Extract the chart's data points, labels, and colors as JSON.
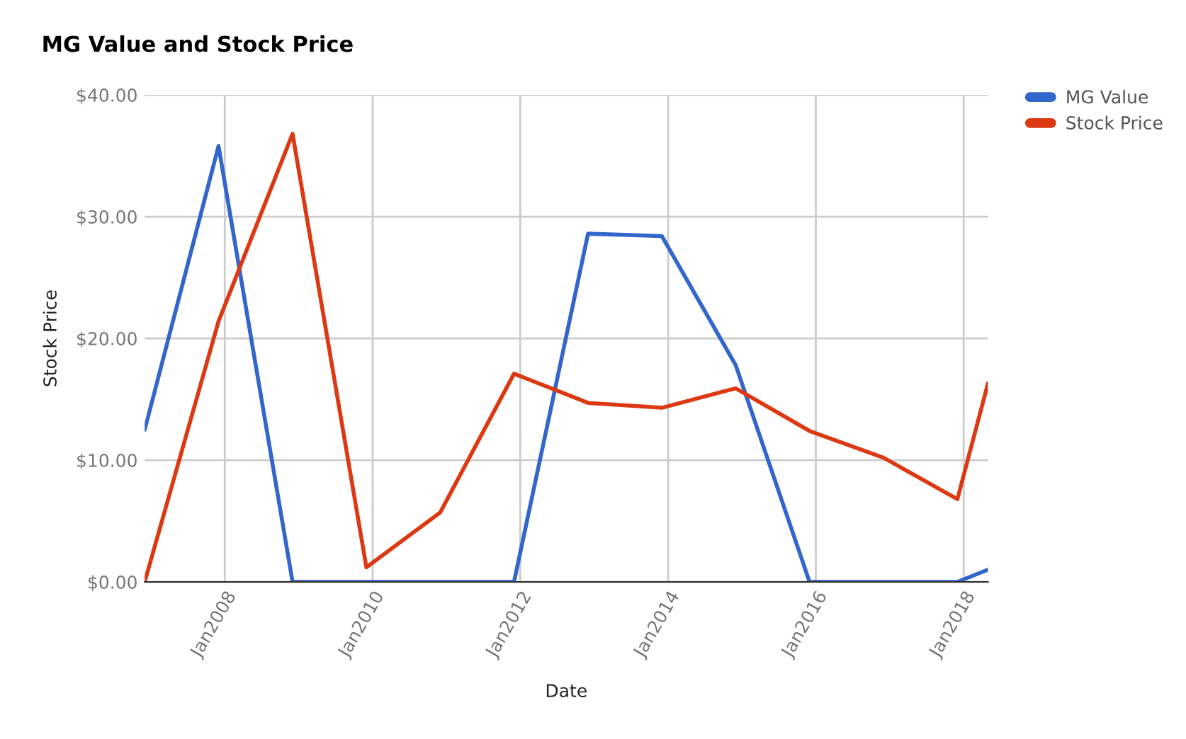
{
  "chart_data": {
    "type": "line",
    "title": "MG Value and Stock Price",
    "xlabel": "Date",
    "ylabel": "Stock Price",
    "x": [
      "2006-12",
      "2007-12",
      "2008-12",
      "2009-12",
      "2010-12",
      "2011-12",
      "2012-12",
      "2013-12",
      "2014-12",
      "2015-12",
      "2016-12",
      "2017-12",
      "2018-05"
    ],
    "series": [
      {
        "name": "MG Value",
        "color": "#3366cc",
        "values": [
          12.5,
          35.8,
          0,
          0,
          0,
          0,
          28.6,
          28.4,
          17.8,
          0,
          0,
          0,
          1.0
        ]
      },
      {
        "name": "Stock Price",
        "color": "#dc3912",
        "values": [
          0,
          21.4,
          36.8,
          1.2,
          5.7,
          17.1,
          14.7,
          14.3,
          15.9,
          12.4,
          10.2,
          6.8,
          16.3
        ]
      }
    ],
    "xlim": [
      "2006-12",
      "2018-05"
    ],
    "xticks": [
      {
        "value": "2008-01",
        "label": "Jan2008"
      },
      {
        "value": "2010-01",
        "label": "Jan2010"
      },
      {
        "value": "2012-01",
        "label": "Jan2012"
      },
      {
        "value": "2014-01",
        "label": "Jan2014"
      },
      {
        "value": "2016-01",
        "label": "Jan2016"
      },
      {
        "value": "2018-01",
        "label": "Jan2018"
      }
    ],
    "ylim": [
      0,
      40
    ],
    "yticks": [
      {
        "value": 0,
        "label": "$0.00"
      },
      {
        "value": 10,
        "label": "$10.00"
      },
      {
        "value": 20,
        "label": "$20.00"
      },
      {
        "value": 30,
        "label": "$30.00"
      },
      {
        "value": 40,
        "label": "$40.00"
      }
    ],
    "grid": true,
    "legend": "top right",
    "marker": "none",
    "line_style": "solid"
  }
}
